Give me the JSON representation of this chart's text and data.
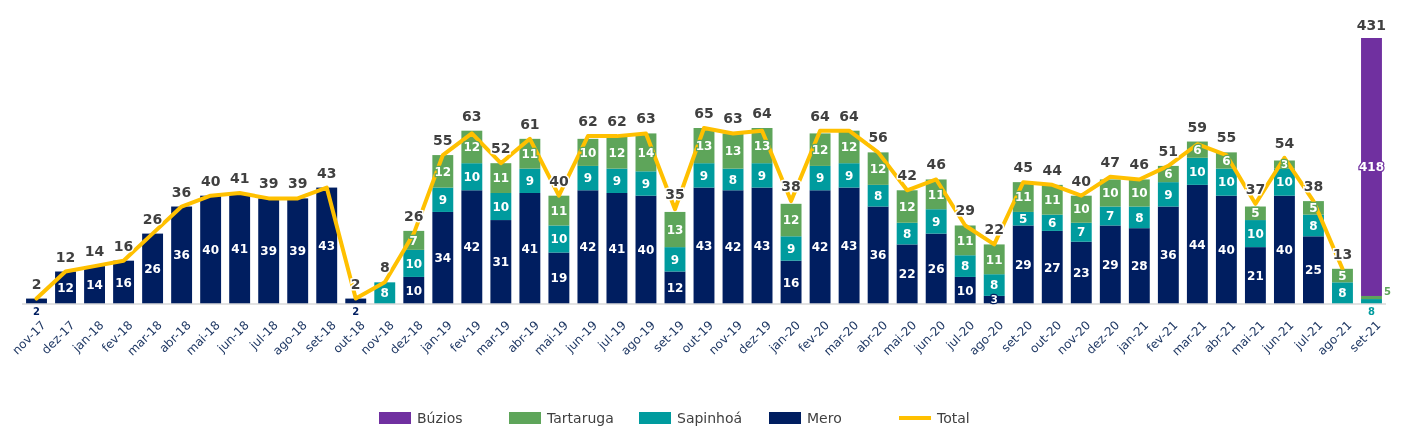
{
  "chart_data": [
    {
      "type": "bar",
      "stacked": true,
      "data_labels": true,
      "legend": "bottom",
      "categories": [
        "nov-17",
        "dez-17",
        "jan-18",
        "fev-18",
        "mar-18",
        "abr-18",
        "mai-18",
        "jun-18",
        "jul-18",
        "ago-18",
        "set-18",
        "out-18",
        "nov-18",
        "dez-18",
        "jan-19",
        "fev-19",
        "mar-19",
        "abr-19",
        "mai-19",
        "jun-19",
        "jul-19",
        "ago-19",
        "set-19",
        "out-19",
        "nov-19",
        "dez-19",
        "jan-20",
        "fev-20",
        "mar-20",
        "abr-20",
        "mai-20",
        "jun-20",
        "jul-20",
        "ago-20",
        "set-20",
        "out-20",
        "nov-20",
        "dez-20",
        "jan-21",
        "fev-21",
        "mar-21",
        "abr-21",
        "mai-21",
        "jun-21",
        "jul-21",
        "ago-21"
      ],
      "series": [
        {
          "name": "Mero",
          "color": "#001e60",
          "values": [
            2,
            12,
            14,
            16,
            26,
            36,
            40,
            41,
            39,
            39,
            43,
            2,
            null,
            10,
            34,
            42,
            31,
            41,
            19,
            42,
            41,
            40,
            12,
            43,
            42,
            43,
            16,
            42,
            43,
            36,
            22,
            26,
            10,
            3,
            29,
            27,
            23,
            29,
            28,
            36,
            44,
            40,
            21,
            40,
            25,
            null
          ]
        },
        {
          "name": "Sapinhoá",
          "color": "#009b9e",
          "values": [
            null,
            null,
            null,
            null,
            null,
            null,
            null,
            null,
            null,
            null,
            null,
            null,
            8,
            10,
            9,
            10,
            10,
            9,
            10,
            9,
            9,
            9,
            9,
            9,
            8,
            9,
            9,
            9,
            9,
            8,
            8,
            9,
            8,
            8,
            5,
            6,
            7,
            7,
            8,
            9,
            10,
            10,
            10,
            10,
            8,
            8
          ]
        },
        {
          "name": "Tartaruga",
          "color": "#5ea55a",
          "values": [
            null,
            null,
            null,
            null,
            null,
            null,
            null,
            null,
            null,
            null,
            null,
            null,
            null,
            7,
            12,
            12,
            11,
            11,
            11,
            10,
            12,
            14,
            13,
            13,
            13,
            13,
            12,
            12,
            12,
            12,
            12,
            11,
            11,
            11,
            11,
            11,
            10,
            10,
            10,
            6,
            6,
            6,
            5,
            3,
            5,
            5
          ]
        },
        {
          "name": "Total",
          "type": "line",
          "color": "#ffc000",
          "values": [
            2,
            12,
            14,
            16,
            26,
            36,
            40,
            41,
            39,
            39,
            43,
            2,
            8,
            26,
            55,
            63,
            52,
            61,
            40,
            62,
            62,
            63,
            35,
            65,
            63,
            64,
            38,
            64,
            64,
            56,
            42,
            46,
            29,
            22,
            45,
            44,
            40,
            47,
            46,
            51,
            59,
            55,
            37,
            54,
            38,
            13
          ]
        }
      ]
    },
    {
      "type": "bar",
      "stacked": true,
      "data_labels": true,
      "categories": [
        "set-21"
      ],
      "series": [
        {
          "name": "Sapinhoá",
          "color": "#009b9e",
          "values": [
            8
          ]
        },
        {
          "name": "Tartaruga",
          "color": "#5ea55a",
          "values": [
            5
          ]
        },
        {
          "name": "Búzios",
          "color": "#7030a0",
          "values": [
            418
          ]
        }
      ],
      "totals": [
        "431"
      ]
    }
  ]
}
